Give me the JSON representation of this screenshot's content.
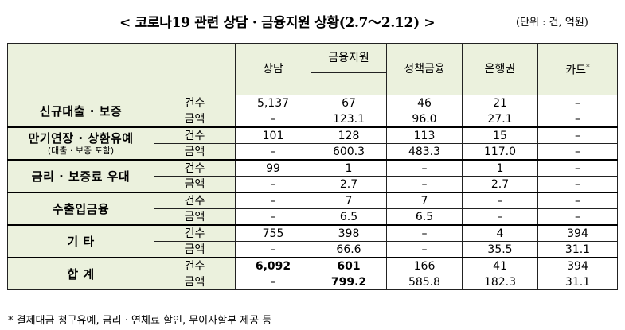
{
  "title": "< 코로나19 관련 상담 · 금융지원 상황(2.7～2.12) >",
  "unit": "(단위 : 건, 억원)",
  "headers": {
    "consult": "상담",
    "finance": "금융지원",
    "policy": "정책금융",
    "bank": "은행권",
    "card": "카드",
    "card_mark": "*"
  },
  "metric_labels": {
    "count": "건수",
    "amount": "금액"
  },
  "categories": [
    {
      "name": "신규대출 · 보증",
      "sub": "",
      "count": [
        "5,137",
        "67",
        "46",
        "21",
        "–"
      ],
      "amount": [
        "–",
        "123.1",
        "96.0",
        "27.1",
        "–"
      ]
    },
    {
      "name": "만기연장 · 상환유예",
      "sub": "(대출 · 보증 포함)",
      "count": [
        "101",
        "128",
        "113",
        "15",
        "–"
      ],
      "amount": [
        "–",
        "600.3",
        "483.3",
        "117.0",
        "–"
      ]
    },
    {
      "name": "금리 · 보증료 우대",
      "sub": "",
      "count": [
        "99",
        "1",
        "–",
        "1",
        "–"
      ],
      "amount": [
        "–",
        "2.7",
        "–",
        "2.7",
        "–"
      ]
    },
    {
      "name": "수출입금융",
      "sub": "",
      "count": [
        "–",
        "7",
        "7",
        "–",
        "–"
      ],
      "amount": [
        "–",
        "6.5",
        "6.5",
        "–",
        "–"
      ]
    },
    {
      "name": "기 타",
      "sub": "",
      "count": [
        "755",
        "398",
        "–",
        "4",
        "394"
      ],
      "amount": [
        "–",
        "66.6",
        "–",
        "35.5",
        "31.1"
      ]
    },
    {
      "name": "합 계",
      "sub": "",
      "count": [
        "6,092",
        "601",
        "166",
        "41",
        "394"
      ],
      "amount": [
        "–",
        "799.2",
        "585.8",
        "182.3",
        "31.1"
      ]
    }
  ],
  "footnote": "* 결제대금 청구유예, 금리 · 연체료 할인, 무이자할부 제공 등"
}
